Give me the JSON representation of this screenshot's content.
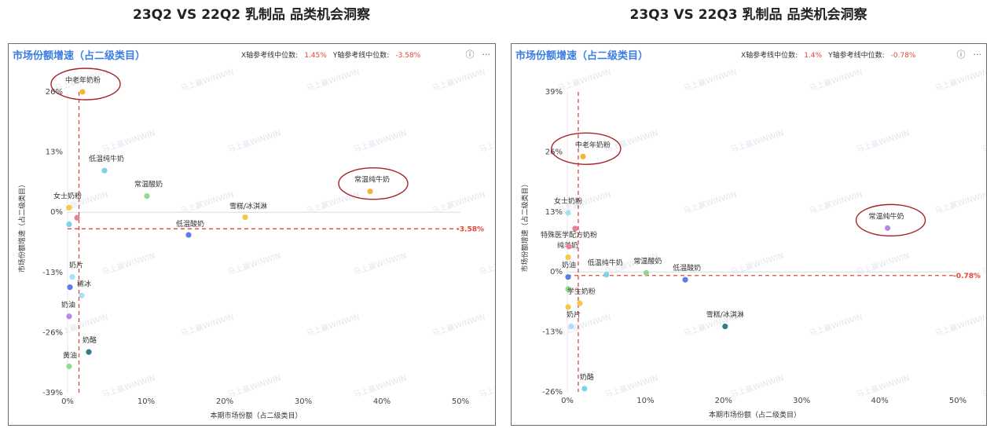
{
  "panels": [
    {
      "main_title": "23Q2 VS 22Q2 乳制品 品类机会洞察",
      "panel_title": "市场份额增速（占二级类目）",
      "x_ref_label": "X轴参考线中位数:",
      "x_ref_value": "1.45%",
      "y_ref_label": "Y轴参考线中位数:",
      "y_ref_value": "-3.58%",
      "y_ref_tag": "-3.58%",
      "info_icon": "ⓘ",
      "more_icon": "···",
      "watermark": "马上赢WINWIN",
      "chart_data": {
        "type": "scatter",
        "xlabel": "本期市场份额（占二级类目）",
        "ylabel": "市场份额增速（占二级类目）",
        "x_ticks": [
          "0%",
          "10%",
          "20%",
          "30%",
          "40%",
          "50%"
        ],
        "x_tick_values": [
          0,
          10,
          20,
          30,
          40,
          50
        ],
        "y_ticks": [
          "26%",
          "13%",
          "0%",
          "-13%",
          "-26%",
          "-39%"
        ],
        "y_tick_values": [
          26,
          13,
          0,
          -13,
          -26,
          -39
        ],
        "xlim": [
          0,
          50
        ],
        "ylim": [
          -39,
          26
        ],
        "x_ref": 1.45,
        "y_ref": -3.58,
        "points": [
          {
            "label": "中老年奶粉",
            "x": 1.9,
            "y": 26,
            "color": "#f2b63a"
          },
          {
            "label": "低温纯牛奶",
            "x": 4.7,
            "y": 9,
            "color": "#7dd3e8"
          },
          {
            "label": "常温酸奶",
            "x": 10.1,
            "y": 3.5,
            "color": "#8fdc8f"
          },
          {
            "label": "常温纯牛奶",
            "x": 38.5,
            "y": 4.5,
            "color": "#f2b63a"
          },
          {
            "label": "女士奶粉",
            "x": 0.2,
            "y": 1,
            "color": "#f6c84a"
          },
          {
            "label": "",
            "x": 1.2,
            "y": -1.2,
            "color": "#e6839a"
          },
          {
            "label": "",
            "x": 0.2,
            "y": -2.6,
            "color": "#7dd3e8"
          },
          {
            "label": "雪糕/冰淇淋",
            "x": 22.6,
            "y": -1.1,
            "color": "#f6c84a"
          },
          {
            "label": "低温酸奶",
            "x": 15.4,
            "y": -4.9,
            "color": "#5a7fe6"
          },
          {
            "label": "奶片",
            "x": 0.6,
            "y": -14,
            "color": "#a9e0f2"
          },
          {
            "label": "",
            "x": 0.3,
            "y": -16.2,
            "color": "#5a7fe6"
          },
          {
            "label": "稀冰",
            "x": 1.8,
            "y": -18,
            "color": "#a9e0f2"
          },
          {
            "label": "奶油",
            "x": 0.2,
            "y": -22.5,
            "color": "#b58ae6"
          },
          {
            "label": "奶酪",
            "x": 2.7,
            "y": -30.2,
            "color": "#2f7c8c"
          },
          {
            "label": "黄油",
            "x": 0.2,
            "y": -33.3,
            "color": "#8fdc8f"
          }
        ],
        "circled": [
          "中老年奶粉",
          "常温纯牛奶"
        ]
      }
    },
    {
      "main_title": "23Q3 VS 22Q3 乳制品 品类机会洞察",
      "panel_title": "市场份额增速（占二级类目）",
      "x_ref_label": "X轴参考线中位数:",
      "x_ref_value": "1.4%",
      "y_ref_label": "Y轴参考线中位数:",
      "y_ref_value": "-0.78%",
      "y_ref_tag": "-0.78%",
      "info_icon": "ⓘ",
      "more_icon": "···",
      "watermark": "马上赢WINWIN",
      "chart_data": {
        "type": "scatter",
        "xlabel": "本期市场份额（占二级类目）",
        "ylabel": "市场份额增速（占二级类目）",
        "x_ticks": [
          "0%",
          "10%",
          "20%",
          "30%",
          "40%",
          "50%"
        ],
        "x_tick_values": [
          0,
          10,
          20,
          30,
          40,
          50
        ],
        "y_ticks": [
          "39%",
          "26%",
          "13%",
          "0%",
          "-13%",
          "-26%"
        ],
        "y_tick_values": [
          39,
          26,
          13,
          0,
          -13,
          -26
        ],
        "xlim": [
          0,
          50
        ],
        "ylim": [
          -26,
          39
        ],
        "x_ref": 1.4,
        "y_ref": -0.78,
        "points": [
          {
            "label": "中老年奶粉",
            "x": 2.0,
            "y": 25,
            "color": "#f2b63a"
          },
          {
            "label": "女士奶粉",
            "x": 0.1,
            "y": 12.8,
            "color": "#a9e0f2"
          },
          {
            "label": "",
            "x": 1.0,
            "y": 9.4,
            "color": "#e6839a"
          },
          {
            "label": "常温纯牛奶",
            "x": 41,
            "y": 9.5,
            "color": "#b58ae6"
          },
          {
            "label": "纯羊奶",
            "x": 0.1,
            "y": 3.2,
            "color": "#f6c84a"
          },
          {
            "label": "特殊医学配方奶粉",
            "x": 0.2,
            "y": 5.5,
            "color": "#e6839a"
          },
          {
            "label": "奶油",
            "x": 0.1,
            "y": -1.1,
            "color": "#5a7fe6"
          },
          {
            "label": "低温纯牛奶",
            "x": 5.0,
            "y": -0.6,
            "color": "#7dd3e8"
          },
          {
            "label": "常温酸奶",
            "x": 10.1,
            "y": -0.2,
            "color": "#8fdc8f"
          },
          {
            "label": "低温酸奶",
            "x": 15.1,
            "y": -1.7,
            "color": "#5a7fe6"
          },
          {
            "label": "",
            "x": 0.1,
            "y": -3.7,
            "color": "#8fdc8f"
          },
          {
            "label": "学生奶粉",
            "x": 1.6,
            "y": -6.8,
            "color": "#f6c84a"
          },
          {
            "label": "",
            "x": 0.1,
            "y": -7.6,
            "color": "#f6c84a"
          },
          {
            "label": "奶片",
            "x": 0.5,
            "y": -11.8,
            "color": "#a9e0f2"
          },
          {
            "label": "雪糕/冰淇淋",
            "x": 20.2,
            "y": -11.8,
            "color": "#2f7c8c"
          },
          {
            "label": "奶酪",
            "x": 2.2,
            "y": -25.3,
            "color": "#7dd3e8"
          }
        ],
        "circled": [
          "中老年奶粉",
          "常温纯牛奶"
        ]
      }
    }
  ]
}
